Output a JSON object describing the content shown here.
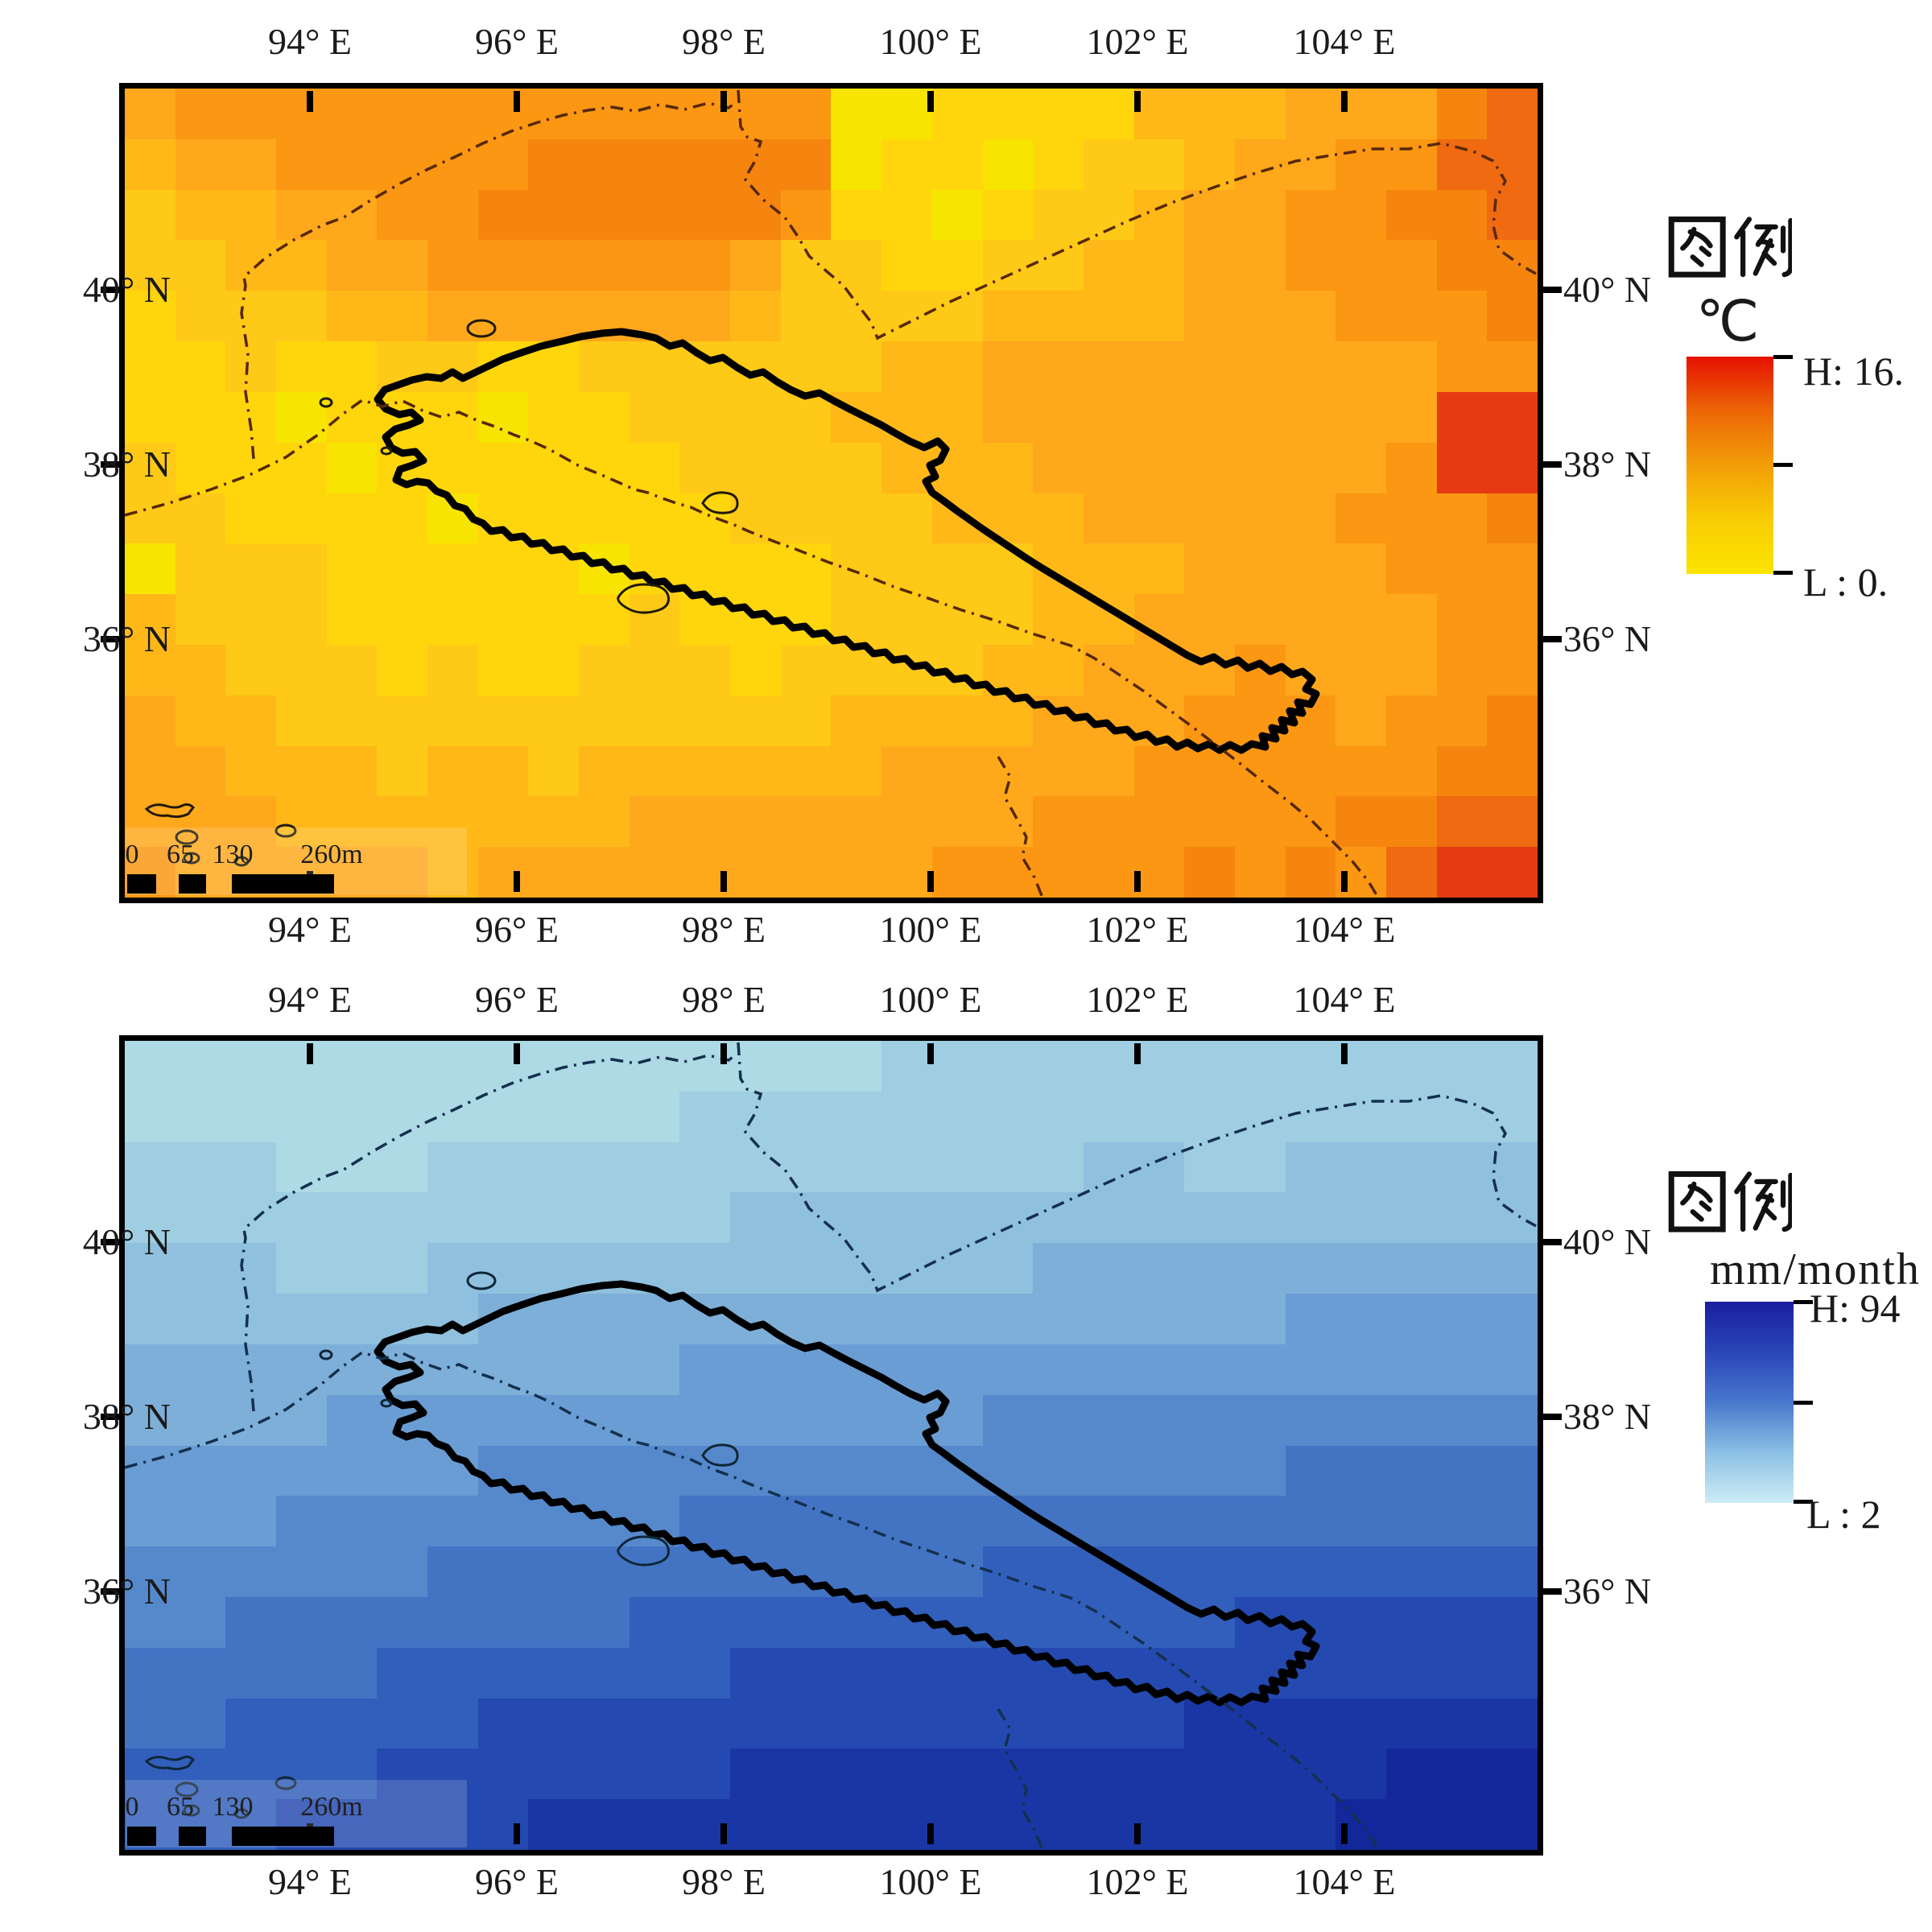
{
  "panels": [
    {
      "name": "temperature-map",
      "legend": {
        "title": "图例",
        "unit": "℃",
        "high": "H: 16.",
        "low": "L : 0.",
        "gradient": [
          "#E51000",
          "#EC6606",
          "#F29E08",
          "#F8CC04",
          "#FBE400"
        ]
      },
      "axes": {
        "lon": [
          "94° E",
          "96° E",
          "98° E",
          "100° E",
          "102° E",
          "104° E"
        ],
        "lat": [
          "40° N",
          "38° N",
          "36° N"
        ]
      },
      "scalebar": [
        "0",
        "65",
        "130",
        "260m"
      ],
      "palette": [
        "#F7E400",
        "#FFD60C",
        "#FFC917",
        "#FFB818",
        "#FFA81C",
        "#FB9713",
        "#F5850F",
        "#EF6A10",
        "#E63B12"
      ],
      "grid": [
        "4555555555555500111133344467",
        "3445555566666601101223445577",
        "2334455666666511012234455667",
        "2233445555554221122334455566",
        "1222334444443222233334445556",
        "1121122112222223344444444455",
        "1110111011222233344444444488",
        "2111011111122223334444444588",
        "2211110111112222333444445556",
        "0222111110111122223334444555",
        "3222111111211122223344444455",
        "3322212112221222233444544455",
        "4332222222222233334445554556",
        "4433323323333334444455555566",
        "4443333333444444445555556677",
        "5444443444444444555556565788"
      ]
    },
    {
      "name": "precipitation-map",
      "legend": {
        "title": "图例",
        "unit": "mm/month",
        "high": "H: 94",
        "low": "L : 2",
        "gradient": [
          "#1A1E9E",
          "#2A46B8",
          "#4878CC",
          "#8CC0E4",
          "#CDECF6"
        ]
      },
      "axes": {
        "lon": [
          "94° E",
          "96° E",
          "98° E",
          "100° E",
          "102° E",
          "104° E"
        ],
        "lat": [
          "40° N",
          "38° N",
          "36° N"
        ]
      },
      "scalebar": [
        "0",
        "65",
        "130",
        "260m"
      ],
      "palette": [
        "#AEDAE6",
        "#9FCEE2",
        "#8FC0DE",
        "#7DAFD9",
        "#6A9DD4",
        "#5689CC",
        "#4374C4",
        "#325FBC",
        "#2449B0",
        "#1A36A4",
        "#12289A"
      ],
      "grid": [
        "0000000000000001111111111111",
        "0000000000011111111111111111",
        "1110001111111111111221122222",
        "1111111111112222222222222222",
        "2221112222222222223333333333",
        "2222222333333333333333344444",
        "3333333333344444444444444444",
        "3333444444444444455555555555",
        "4444444555555555555555566666",
        "4445555555566666666666666666",
        "5555556666666666677777777777",
        "5566666666777777777777888888",
        "6666677777778888888888888888",
        "6677777888888888888889999999",
        "7777788888889999999999999aaa",
        "777888889999999999999999aaaa"
      ]
    }
  ]
}
